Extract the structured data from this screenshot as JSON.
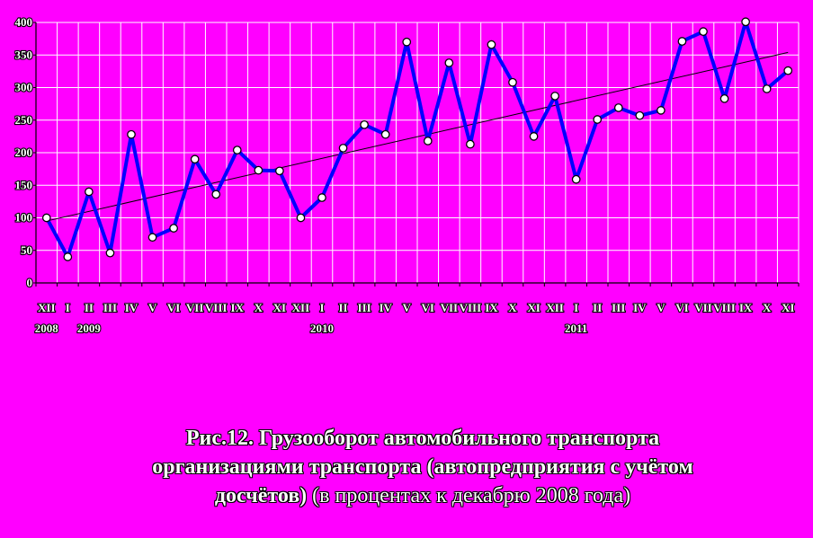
{
  "chart_data": {
    "type": "line",
    "title": "",
    "xlabel": "",
    "ylabel": "",
    "ylim": [
      0,
      400
    ],
    "yticks": [
      0,
      50,
      100,
      150,
      200,
      250,
      300,
      350,
      400
    ],
    "grid": true,
    "trendline": true,
    "categories": [
      "XII",
      "I",
      "II",
      "III",
      "IV",
      "V",
      "VI",
      "VII",
      "VIII",
      "IX",
      "X",
      "XI",
      "XII",
      "I",
      "II",
      "III",
      "IV",
      "V",
      "VI",
      "VII",
      "VIII",
      "IX",
      "X",
      "XI",
      "XII",
      "I",
      "II",
      "III",
      "IV",
      "V",
      "VI",
      "VII",
      "VIII",
      "IX",
      "X",
      "XI"
    ],
    "year_labels": [
      {
        "label": "2008",
        "index": 0
      },
      {
        "label": "2009",
        "index": 2
      },
      {
        "label": "2010",
        "index": 13
      },
      {
        "label": "2011",
        "index": 25
      }
    ],
    "series": [
      {
        "values": [
          100,
          40,
          140,
          46,
          228,
          70,
          84,
          190,
          136,
          204,
          173,
          172,
          100,
          131,
          207,
          243,
          228,
          370,
          218,
          338,
          213,
          366,
          308,
          225,
          287,
          159,
          251,
          269,
          257,
          265,
          371,
          386,
          283,
          401,
          298,
          326
        ]
      }
    ],
    "colors": {
      "background": "#ff00ff",
      "line": "#0000ff",
      "marker": "#ffffff",
      "trend": "#000000"
    }
  },
  "caption": {
    "bold_line1": "Рис.12. Грузооборот автомобильного транспорта",
    "bold_line2": "организациями транспорта (автопредприятия с учётом",
    "bold_line3": "досчётов)",
    "regular_tail": " (в процентах к декабрю 2008 года)"
  }
}
